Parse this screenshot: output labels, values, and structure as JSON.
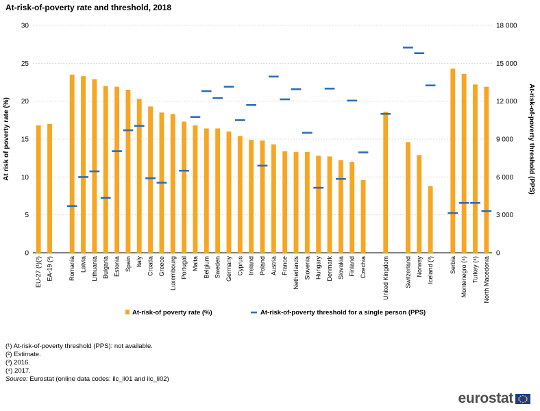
{
  "chart_data": {
    "type": "bar",
    "title": "At-risk-of-poverty rate and threshold, 2018",
    "ylabel": "At risk of poverty rate (%)",
    "y2label": "At-risk-of-poverty threshold (PPS)",
    "ylim": [
      0,
      30
    ],
    "y2lim": [
      0,
      18000
    ],
    "yticks": [
      0,
      5,
      10,
      15,
      20,
      25,
      30
    ],
    "y2ticks": [
      "0",
      "3 000",
      "6 000",
      "9 000",
      "12 000",
      "15 000",
      "18 000"
    ],
    "categories": [
      "EU-27 (¹)(²)",
      "EA-19 (²)",
      "Romania",
      "Latvia",
      "Lithuania",
      "Bulgaria",
      "Estonia",
      "Spain",
      "Italy",
      "Croatia",
      "Greece",
      "Luxembourg",
      "Portugal",
      "Malta",
      "Belgium",
      "Sweden",
      "Germany",
      "Cyprus",
      "Ireland",
      "Poland",
      "Austria",
      "France",
      "Netherlands",
      "Slovenia",
      "Hungary",
      "Denmark",
      "Slovakia",
      "Finland",
      "Czechia",
      "United Kingdom",
      "Switzerland",
      "Norway",
      "Iceland (³)",
      "Serbia",
      "Montenegro (⁴)",
      "Turkey (⁴)",
      "North Macedonia"
    ],
    "groups": [
      2,
      27,
      1,
      3,
      4
    ],
    "series": [
      {
        "name": "At-risk-of poverty rate (%)",
        "kind": "bar",
        "color": "#f6a623",
        "values": [
          16.8,
          17.0,
          23.5,
          23.3,
          22.9,
          22.0,
          21.9,
          21.5,
          20.3,
          19.3,
          18.5,
          18.3,
          17.3,
          16.8,
          16.4,
          16.4,
          16.0,
          15.4,
          14.9,
          14.8,
          14.3,
          13.4,
          13.3,
          13.3,
          12.8,
          12.7,
          12.2,
          12.0,
          9.6,
          18.6,
          14.6,
          12.9,
          8.8,
          24.3,
          23.6,
          22.2,
          21.9
        ]
      },
      {
        "name": "At-risk-of-poverty threshold for a single person (PPS)",
        "kind": "marker",
        "color": "#2e6db4",
        "values": [
          null,
          null,
          3700,
          6000,
          6450,
          4350,
          8050,
          9700,
          10050,
          5900,
          5550,
          null,
          6500,
          10750,
          12800,
          12250,
          13150,
          10500,
          11700,
          6900,
          13950,
          12150,
          12950,
          9500,
          5150,
          13000,
          5850,
          12050,
          7950,
          11000,
          16250,
          15800,
          13250,
          3150,
          3950,
          3950,
          3300
        ]
      }
    ],
    "legend": [
      "At-risk-of poverty rate (%)",
      "At-risk-of-poverty threshold for a single person (PPS)"
    ],
    "legend_position": "bottom",
    "grid": true
  },
  "notes": {
    "note1": "(¹) At-risk-of-poverty threshold (PPS): not available.",
    "note2": "(²) Estimate.",
    "note3": "(³) 2016.",
    "note4": "(⁴) 2017.",
    "source_label": "Source:",
    "source_text": "Eurostat (online data codes: ilc_li01 and ilc_li02)"
  },
  "brand": {
    "name": "eurostat"
  }
}
